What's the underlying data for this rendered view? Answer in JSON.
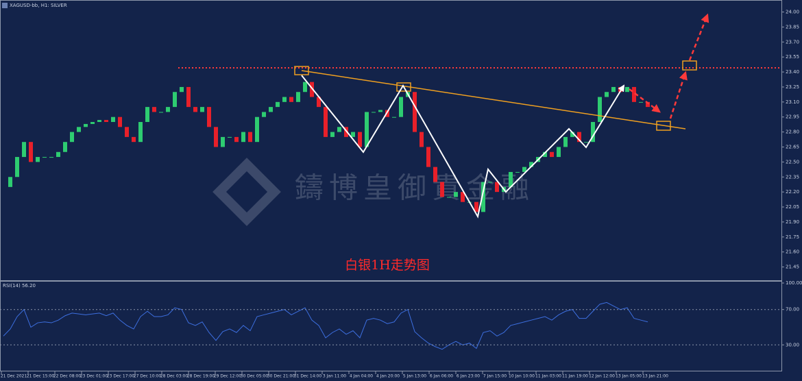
{
  "window": {
    "title": "XAGUSD-bb, H1: SILVER"
  },
  "caption": "白银1H走势图",
  "watermark": "鑄博皇御貴金融",
  "time_axis": {
    "labels": [
      "21 Dec 2021",
      "21 Dec 15:00",
      "22 Dec 08:00",
      "23 Dec 01:00",
      "23 Dec 17:00",
      "27 Dec 10:00",
      "28 Dec 03:00",
      "28 Dec 19:00",
      "29 Dec 12:00",
      "30 Dec 05:00",
      "30 Dec 21:00",
      "31 Dec 14:00",
      "3 Jan 11:00",
      "4 Jan 04:00",
      "4 Jan 20:00",
      "5 Jan 13:00",
      "6 Jan 06:00",
      "6 Jan 23:00",
      "7 Jan 15:00",
      "10 Jan 10:00",
      "11 Jan 03:00",
      "11 Jan 19:00",
      "12 Jan 12:00",
      "13 Jan 05:00",
      "13 Jan 21:00"
    ]
  },
  "chart_data": [
    {
      "type": "candlestick",
      "up_color": "#2ecc71",
      "down_color": "#e8202a",
      "closes": [
        22.25,
        22.35,
        22.55,
        22.7,
        22.5,
        22.55,
        22.55,
        22.55,
        22.6,
        22.7,
        22.8,
        22.85,
        22.88,
        22.9,
        22.92,
        22.9,
        22.95,
        22.85,
        22.75,
        22.7,
        22.9,
        23.05,
        23.0,
        23.0,
        23.05,
        23.2,
        23.25,
        23.05,
        23.0,
        23.05,
        22.85,
        22.65,
        22.75,
        22.75,
        22.7,
        22.8,
        22.7,
        22.95,
        23.0,
        23.05,
        23.1,
        23.15,
        23.1,
        23.2,
        23.3,
        23.15,
        23.05,
        22.75,
        22.8,
        22.85,
        22.75,
        22.8,
        22.65,
        23.0,
        23.0,
        23.02,
        22.95,
        22.95,
        23.15,
        23.2,
        22.8,
        22.65,
        22.45,
        22.3,
        22.15,
        22.15,
        22.2,
        22.1,
        22.1,
        22.0,
        22.3,
        22.3,
        22.2,
        22.25,
        22.4,
        22.4,
        22.45,
        22.5,
        22.55,
        22.6,
        22.55,
        22.65,
        22.75,
        22.8,
        22.7,
        22.7,
        22.9,
        23.15,
        23.2,
        23.25,
        23.2,
        23.25,
        23.1,
        23.1,
        23.05
      ],
      "ylim": [
        21.31,
        24.12
      ],
      "yticks": [
        {
          "value": 24.0,
          "label": "24.00"
        },
        {
          "value": 23.85,
          "label": "23.85"
        },
        {
          "value": 23.7,
          "label": "23.70"
        },
        {
          "value": 23.55,
          "label": "23.55"
        },
        {
          "value": 23.4,
          "label": "23.40"
        },
        {
          "value": 23.25,
          "label": "23.25"
        },
        {
          "value": 23.1,
          "label": "23.10"
        },
        {
          "value": 22.95,
          "label": "22.95"
        },
        {
          "value": 22.8,
          "label": "22.80"
        },
        {
          "value": 22.65,
          "label": "22.65"
        },
        {
          "value": 22.5,
          "label": "22.50"
        },
        {
          "value": 22.35,
          "label": "22.35"
        },
        {
          "value": 22.2,
          "label": "22.20"
        },
        {
          "value": 22.05,
          "label": "22.05"
        },
        {
          "value": 21.9,
          "label": "21.90"
        },
        {
          "value": 21.75,
          "label": "21.75"
        },
        {
          "value": 21.6,
          "label": "21.60"
        },
        {
          "value": 21.45,
          "label": "21.45"
        }
      ]
    },
    {
      "type": "line",
      "title": "RSI(14) 56.20",
      "color": "#3d6fe0",
      "values": [
        40,
        48,
        62,
        70,
        50,
        55,
        56,
        55,
        58,
        63,
        66,
        65,
        64,
        65,
        66,
        63,
        66,
        58,
        52,
        48,
        62,
        68,
        62,
        62,
        64,
        72,
        70,
        55,
        52,
        56,
        44,
        35,
        45,
        48,
        44,
        52,
        46,
        62,
        64,
        66,
        68,
        70,
        64,
        68,
        72,
        58,
        52,
        38,
        44,
        48,
        42,
        46,
        38,
        58,
        60,
        58,
        54,
        56,
        66,
        70,
        45,
        38,
        32,
        28,
        25,
        30,
        34,
        30,
        32,
        26,
        44,
        46,
        40,
        44,
        52,
        54,
        56,
        58,
        60,
        62,
        58,
        64,
        68,
        70,
        60,
        60,
        68,
        76,
        78,
        74,
        70,
        72,
        60,
        58,
        56
      ],
      "ylim": [
        0,
        100
      ],
      "yticks": [
        {
          "value": 100,
          "label": "100.00"
        },
        {
          "value": 70,
          "label": "70.00"
        },
        {
          "value": 30,
          "label": "30.00"
        }
      ]
    }
  ]
}
